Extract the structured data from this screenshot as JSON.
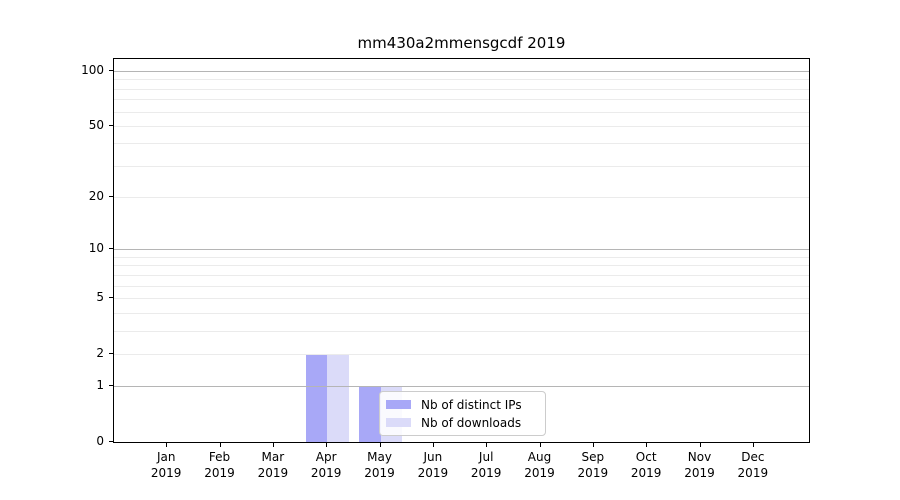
{
  "title": "mm430a2mmensgcdf 2019",
  "chart_data": {
    "type": "bar",
    "title": "mm430a2mmensgcdf 2019",
    "categories": [
      "Jan",
      "Feb",
      "Mar",
      "Apr",
      "May",
      "Jun",
      "Jul",
      "Aug",
      "Sep",
      "Oct",
      "Nov",
      "Dec"
    ],
    "year_label": "2019",
    "series": [
      {
        "name": "Nb of distinct IPs",
        "color": "#a8a8f7",
        "values": [
          0,
          0,
          0,
          2,
          1,
          0,
          0,
          0,
          0,
          0,
          0,
          0
        ]
      },
      {
        "name": "Nb of downloads",
        "color": "#dbdbf9",
        "values": [
          0,
          0,
          0,
          2,
          1,
          0,
          0,
          0,
          0,
          0,
          0,
          0
        ]
      }
    ],
    "xlabel": "",
    "ylabel": "",
    "y_axis": {
      "scale": "log1p",
      "tick_values": [
        0,
        1,
        2,
        5,
        10,
        20,
        50,
        100
      ],
      "minor_gridlines": [
        2,
        3,
        4,
        5,
        6,
        7,
        8,
        9,
        20,
        30,
        40,
        50,
        60,
        70,
        80,
        90
      ],
      "major_gridlines": [
        1,
        10,
        100
      ],
      "ylim": [
        0,
        117
      ]
    },
    "legend": {
      "position": "lower-center",
      "entries": [
        "Nb of distinct IPs",
        "Nb of downloads"
      ]
    },
    "grid": "horizontal"
  }
}
